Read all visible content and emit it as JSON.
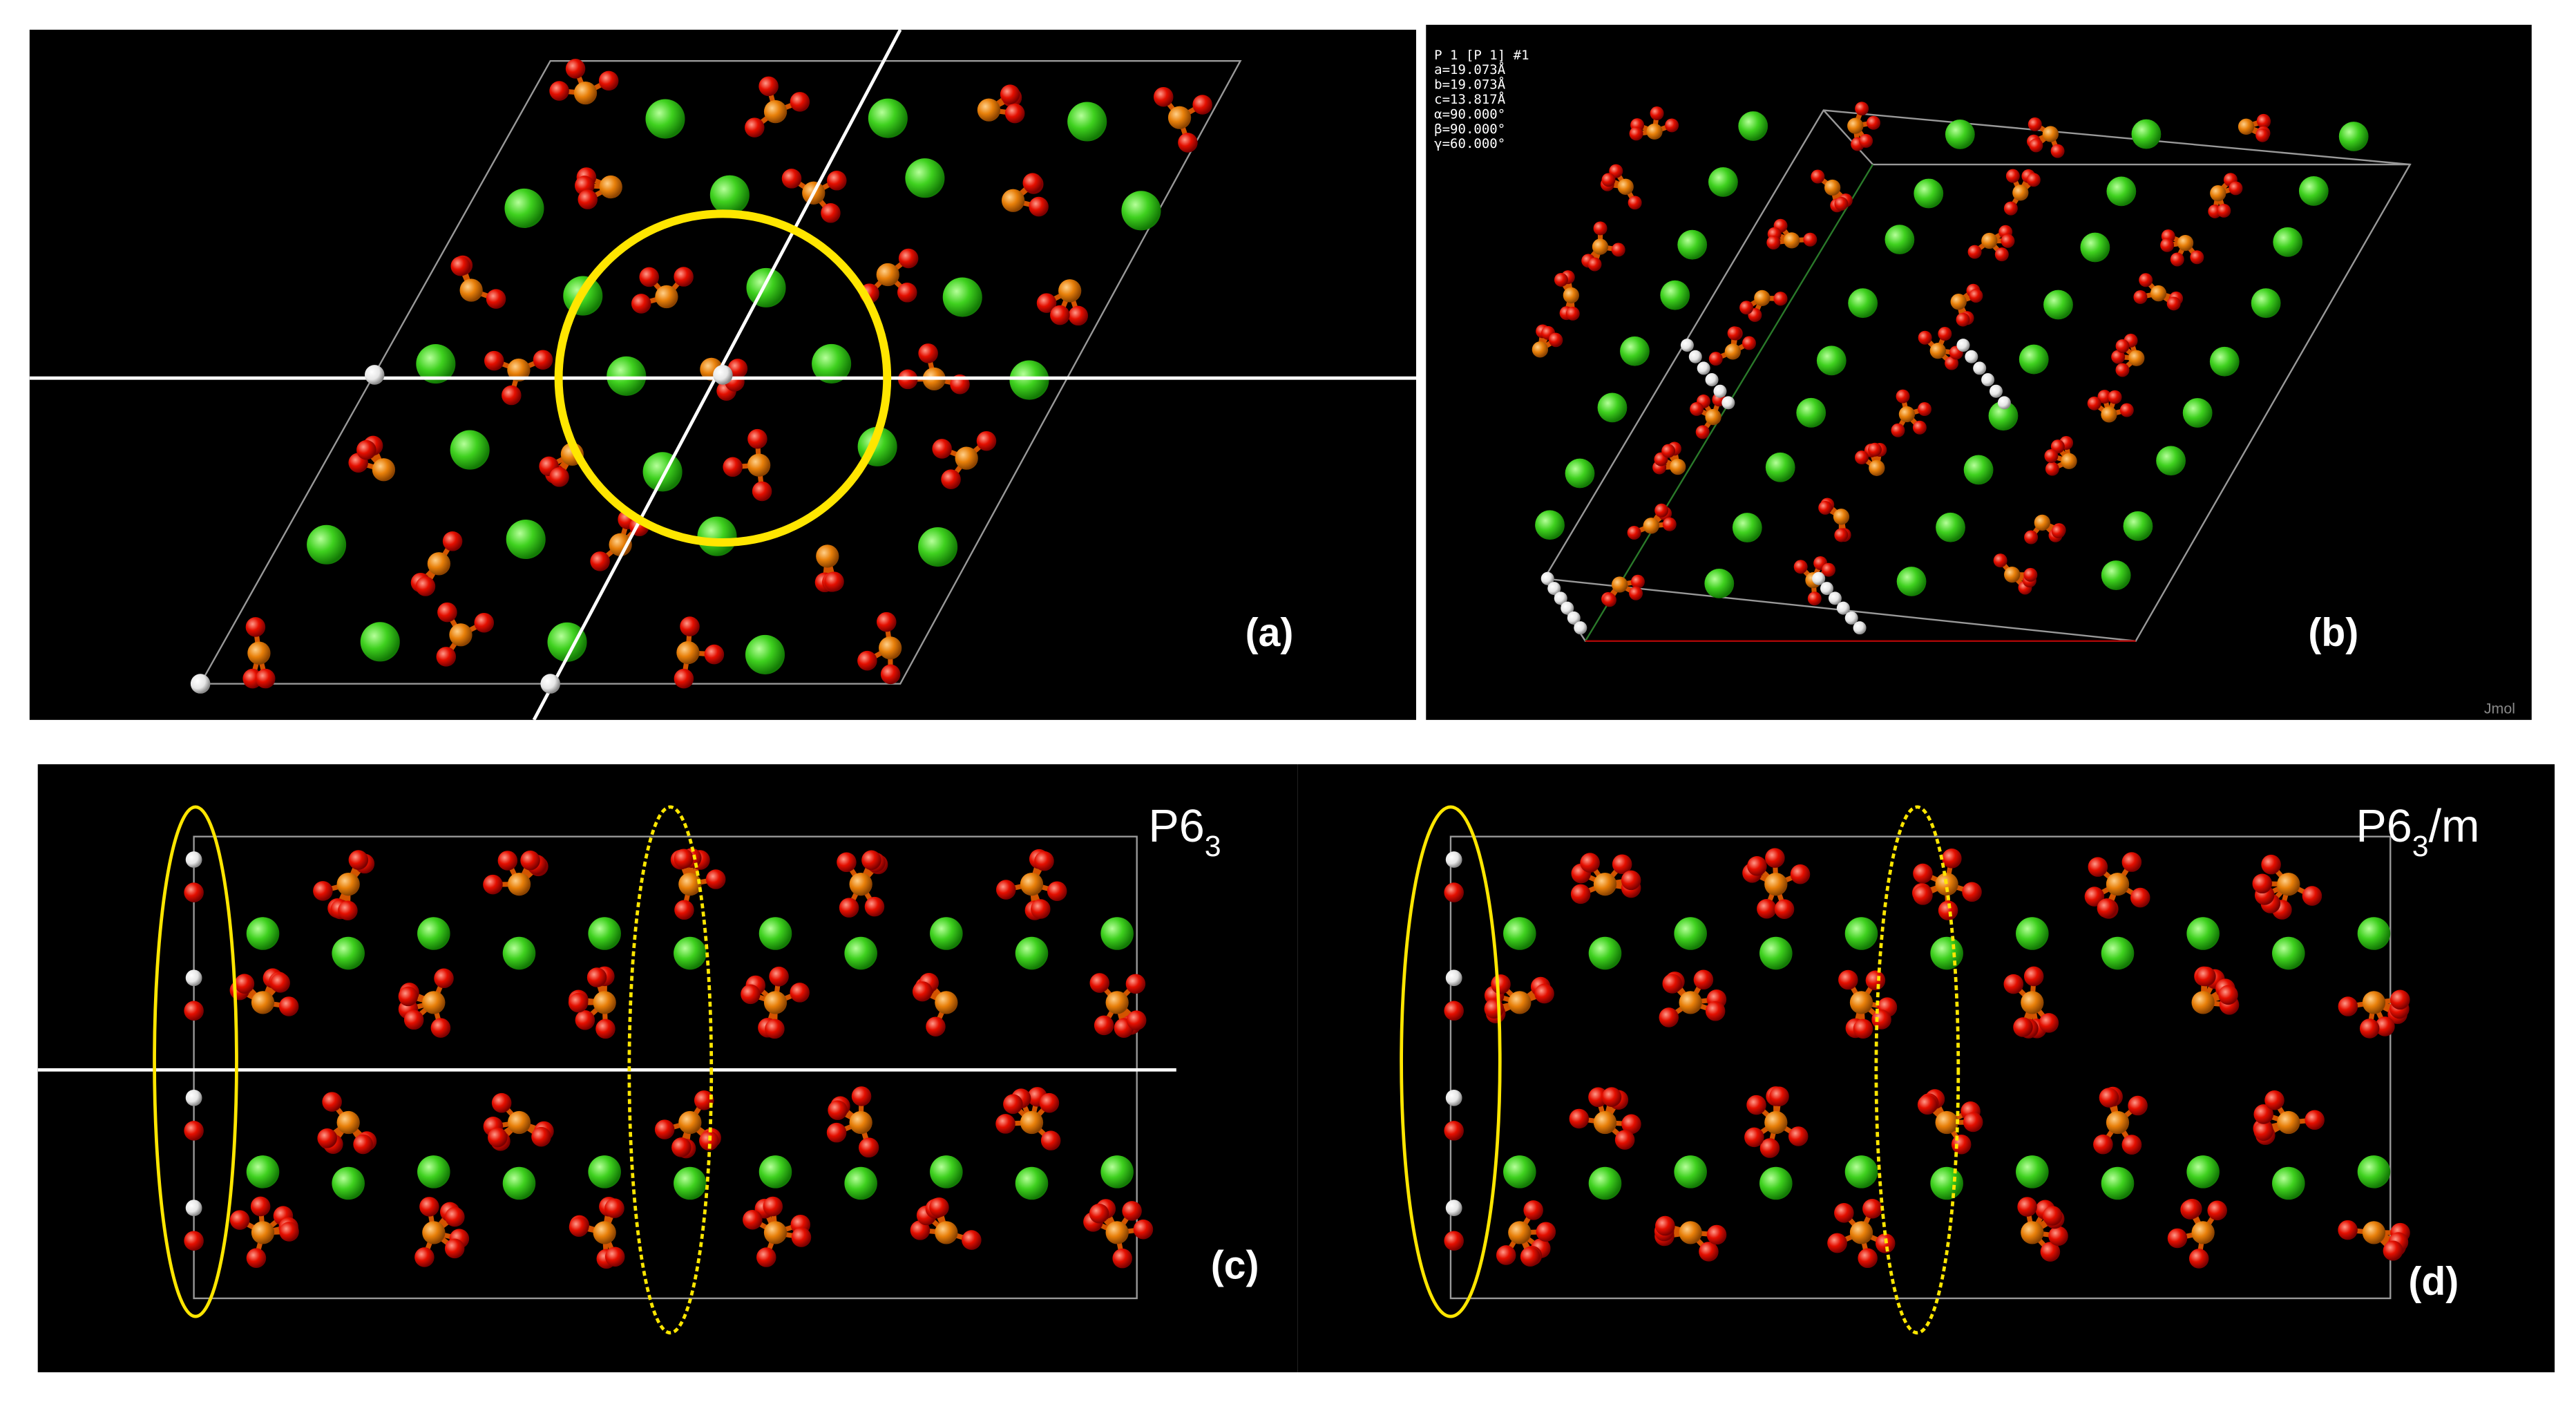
{
  "panel_a": {
    "label": "(a)"
  },
  "panel_b": {
    "label": "(b)",
    "info": [
      "P 1 [P 1] #1",
      "a=19.073Å",
      "b=19.073Å",
      "c=13.817Å",
      "α=90.000°",
      "β=90.000°",
      "γ=60.000°"
    ],
    "watermark": "Jmol"
  },
  "panel_c": {
    "label": "(c)",
    "space_group": "P6",
    "subscript": "3"
  },
  "panel_d": {
    "label": "(d)",
    "space_group": "P6",
    "subscript": "3",
    "suffix": "/m"
  }
}
